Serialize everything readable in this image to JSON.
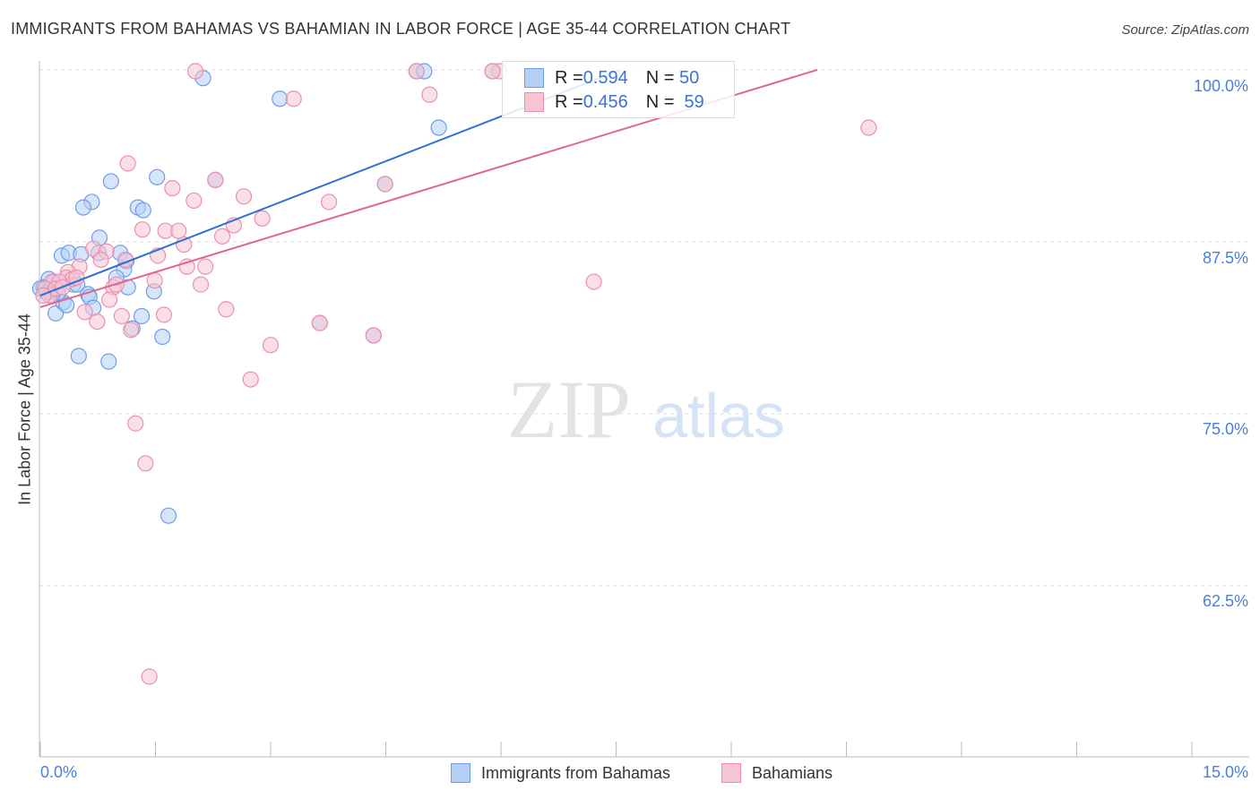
{
  "header": {
    "title": "IMMIGRANTS FROM BAHAMAS VS BAHAMIAN IN LABOR FORCE | AGE 35-44 CORRELATION CHART",
    "source": "Source: ZipAtlas.com"
  },
  "watermark": {
    "zip": "ZIP",
    "atlas": "atlas"
  },
  "colors": {
    "blue": "#6d9ee8",
    "blue_fill": "#b5cff5",
    "blue_line": "#2f6fd8",
    "pink": "#eb90ac",
    "pink_fill": "#f8c4d3",
    "pink_line": "#e06890",
    "label": "#4a7fd8"
  },
  "legend": {
    "series": [
      {
        "r_label": "R = ",
        "r": "0.594",
        "n_label": "N = ",
        "n": "50"
      },
      {
        "r_label": "R = ",
        "r": "0.456",
        "n_label": "N =  ",
        "n": "59"
      }
    ]
  },
  "chart_data": {
    "type": "scatter",
    "title": "IMMIGRANTS FROM BAHAMAS VS BAHAMIAN IN LABOR FORCE | AGE 35-44 CORRELATION CHART",
    "xlabel": "",
    "ylabel": "In Labor Force | Age 35-44",
    "xlim": [
      0,
      15
    ],
    "ylim": [
      52.5,
      100
    ],
    "x_tick_labels": [
      "0.0%",
      "15.0%"
    ],
    "y_ticks": [
      100,
      87.5,
      75,
      62.5
    ],
    "y_tick_labels": [
      "100.0%",
      "87.5%",
      "75.0%",
      "62.5%"
    ],
    "grid": true,
    "legend_placement": "bottom",
    "series": [
      {
        "name": "Immigrants from Bahamas",
        "trend": [
          [
            0,
            83.6
          ],
          [
            7.56,
            100
          ]
        ],
        "points": [
          [
            2.12,
            99.4
          ],
          [
            3.12,
            97.9
          ],
          [
            4.9,
            99.9
          ],
          [
            5.0,
            99.9
          ],
          [
            5.89,
            99.9
          ],
          [
            5.19,
            95.8
          ],
          [
            1.52,
            92.2
          ],
          [
            0.92,
            91.9
          ],
          [
            2.28,
            92.0
          ],
          [
            4.49,
            91.7
          ],
          [
            0.67,
            90.4
          ],
          [
            0.56,
            90.0
          ],
          [
            1.27,
            90.0
          ],
          [
            1.34,
            89.8
          ],
          [
            0.77,
            87.8
          ],
          [
            0.28,
            86.5
          ],
          [
            0.37,
            86.7
          ],
          [
            0.53,
            86.6
          ],
          [
            1.04,
            86.7
          ],
          [
            1.12,
            86.1
          ],
          [
            1.09,
            85.5
          ],
          [
            0.11,
            84.8
          ],
          [
            0.18,
            84.6
          ],
          [
            0.04,
            84.2
          ],
          [
            0.08,
            83.8
          ],
          [
            0.43,
            84.4
          ],
          [
            0.62,
            83.7
          ],
          [
            0.64,
            83.5
          ],
          [
            0.99,
            84.9
          ],
          [
            1.14,
            84.2
          ],
          [
            1.48,
            83.9
          ],
          [
            0.2,
            82.3
          ],
          [
            0.3,
            83.1
          ],
          [
            0.34,
            82.9
          ],
          [
            0.69,
            82.7
          ],
          [
            1.32,
            82.1
          ],
          [
            1.2,
            81.2
          ],
          [
            1.59,
            80.6
          ],
          [
            3.64,
            81.6
          ],
          [
            4.34,
            80.7
          ],
          [
            0.5,
            79.2
          ],
          [
            0.89,
            78.8
          ],
          [
            1.67,
            67.6
          ],
          [
            0.23,
            83.8
          ],
          [
            0.13,
            83.9
          ],
          [
            0.76,
            86.7
          ],
          [
            0.48,
            84.4
          ],
          [
            0.06,
            84.1
          ],
          [
            0.15,
            83.6
          ],
          [
            0.0,
            84.1
          ]
        ]
      },
      {
        "name": "Bahamians",
        "trend": [
          [
            0,
            82.75
          ],
          [
            10.12,
            100
          ]
        ],
        "points": [
          [
            2.02,
            99.9
          ],
          [
            5.98,
            99.9
          ],
          [
            3.3,
            97.9
          ],
          [
            5.07,
            98.2
          ],
          [
            10.79,
            95.8
          ],
          [
            1.14,
            93.2
          ],
          [
            1.72,
            91.4
          ],
          [
            2.28,
            92.0
          ],
          [
            2.65,
            90.8
          ],
          [
            2.0,
            90.5
          ],
          [
            3.76,
            90.4
          ],
          [
            2.89,
            89.2
          ],
          [
            2.52,
            88.7
          ],
          [
            2.37,
            87.9
          ],
          [
            1.63,
            88.3
          ],
          [
            1.8,
            88.3
          ],
          [
            1.33,
            88.4
          ],
          [
            1.87,
            87.3
          ],
          [
            0.69,
            87.0
          ],
          [
            0.86,
            86.8
          ],
          [
            0.79,
            86.2
          ],
          [
            0.51,
            85.7
          ],
          [
            0.36,
            85.3
          ],
          [
            0.34,
            84.9
          ],
          [
            0.42,
            84.8
          ],
          [
            1.53,
            86.5
          ],
          [
            1.91,
            85.7
          ],
          [
            2.15,
            85.7
          ],
          [
            1.49,
            84.7
          ],
          [
            2.09,
            84.4
          ],
          [
            0.95,
            84.2
          ],
          [
            0.99,
            84.4
          ],
          [
            0.15,
            84.6
          ],
          [
            0.25,
            84.6
          ],
          [
            0.06,
            84.1
          ],
          [
            0.12,
            83.6
          ],
          [
            0.9,
            83.3
          ],
          [
            0.58,
            82.4
          ],
          [
            0.74,
            81.7
          ],
          [
            1.06,
            82.1
          ],
          [
            1.61,
            82.2
          ],
          [
            1.18,
            81.1
          ],
          [
            2.42,
            82.6
          ],
          [
            3.64,
            81.6
          ],
          [
            4.34,
            80.7
          ],
          [
            3.0,
            80.0
          ],
          [
            2.74,
            77.5
          ],
          [
            1.24,
            74.3
          ],
          [
            1.37,
            71.4
          ],
          [
            1.42,
            55.9
          ],
          [
            7.21,
            84.6
          ],
          [
            4.49,
            91.7
          ],
          [
            4.9,
            99.9
          ],
          [
            5.89,
            99.9
          ],
          [
            0.2,
            84.1
          ],
          [
            0.04,
            83.6
          ],
          [
            1.11,
            86.2
          ],
          [
            0.29,
            84.2
          ],
          [
            0.47,
            84.9
          ]
        ]
      }
    ]
  }
}
